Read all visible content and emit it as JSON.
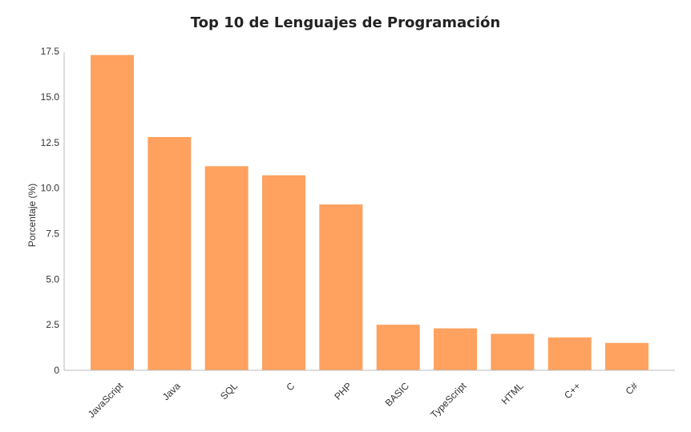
{
  "chart_data": {
    "type": "bar",
    "title": "Top 10 de Lenguajes de Programación",
    "xlabel": "",
    "ylabel": "Porcentaje (%)",
    "categories": [
      "JavaScript",
      "Java",
      "SQL",
      "C",
      "PHP",
      "BASIC",
      "TypeScript",
      "HTML",
      "C++",
      "C#"
    ],
    "values": [
      17.3,
      12.8,
      11.2,
      10.7,
      9.1,
      2.5,
      2.3,
      2.0,
      1.8,
      1.5
    ],
    "ylim": [
      0,
      17.9
    ],
    "yticks": [
      "0",
      "2.5",
      "5.0",
      "7.5",
      "10.0",
      "12.5",
      "15.0",
      "17.5"
    ],
    "bar_color": "#FFA15F",
    "grid": false,
    "legend": "none"
  }
}
